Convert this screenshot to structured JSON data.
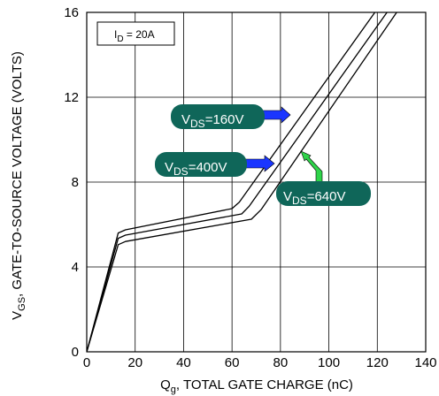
{
  "chart_data": {
    "type": "line",
    "x_axis": {
      "label_main": "Q",
      "label_sub": "g",
      "label_rest": ", TOTAL GATE CHARGE (nC)",
      "range": [
        0,
        140
      ],
      "ticks": [
        0,
        20,
        40,
        60,
        80,
        100,
        120,
        140
      ]
    },
    "y_axis": {
      "label_main": "V",
      "label_sub": "GS",
      "label_rest": ", GATE-TO-SOURCE VOLTAGE (VOLTS)",
      "range": [
        0,
        16
      ],
      "ticks": [
        0,
        4,
        8,
        12,
        16
      ]
    },
    "grid": true,
    "condition_box": {
      "main": "I",
      "sub": "D",
      "rest": " = 20A"
    },
    "series": [
      {
        "name_main": "V",
        "name_sub": "DS",
        "name_rest": "=160V",
        "points": [
          [
            0,
            0
          ],
          [
            13,
            5.6
          ],
          [
            16,
            5.75
          ],
          [
            60,
            6.75
          ],
          [
            63,
            7.05
          ],
          [
            119,
            16
          ]
        ]
      },
      {
        "name_main": "V",
        "name_sub": "DS",
        "name_rest": "=400V",
        "points": [
          [
            0,
            0
          ],
          [
            13,
            5.35
          ],
          [
            16,
            5.5
          ],
          [
            64,
            6.5
          ],
          [
            67,
            6.85
          ],
          [
            124,
            16
          ]
        ]
      },
      {
        "name_main": "V",
        "name_sub": "DS",
        "name_rest": "=640V",
        "points": [
          [
            0,
            0
          ],
          [
            13,
            5.05
          ],
          [
            16,
            5.2
          ],
          [
            68,
            6.25
          ],
          [
            72,
            6.7
          ],
          [
            128,
            16
          ]
        ]
      }
    ],
    "colors": {
      "callout_bg": "#0f6659",
      "arrow_blue": "#1a36ff",
      "arrow_green": "#2fd44a",
      "line": "#000000"
    }
  }
}
